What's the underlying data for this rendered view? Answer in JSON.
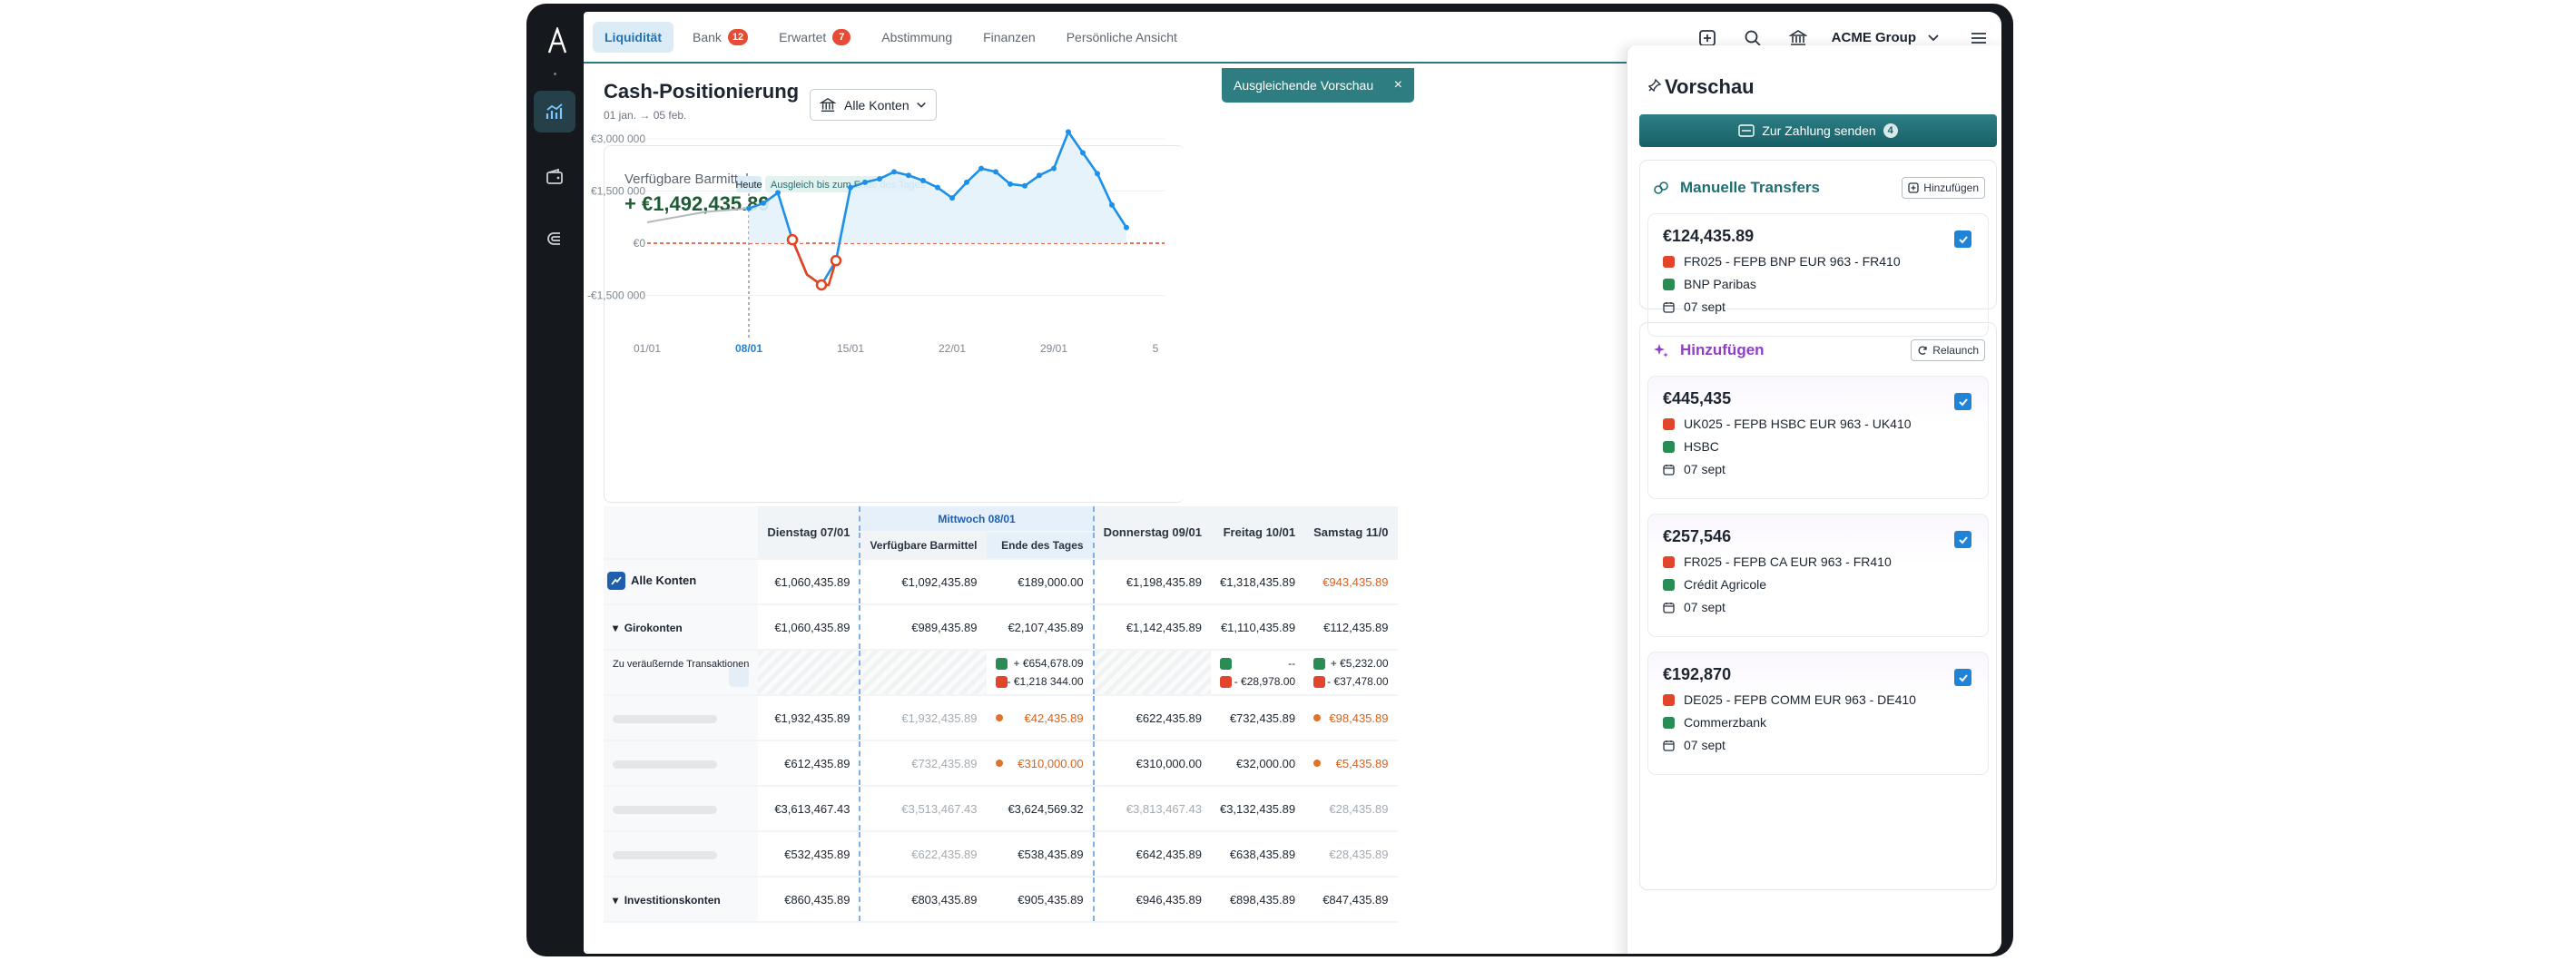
{
  "app": {
    "logo_letter": "A"
  },
  "nav": {
    "tabs": [
      {
        "label": "Liquidität",
        "active": true
      },
      {
        "label": "Bank",
        "badge": "12"
      },
      {
        "label": "Erwartet",
        "badge": "7"
      },
      {
        "label": "Abstimmung"
      },
      {
        "label": "Finanzen"
      },
      {
        "label": "Persönliche Ansicht"
      }
    ],
    "org": "ACME Group"
  },
  "toast": {
    "label": "Ausgleichende Vorschau",
    "close": "×"
  },
  "page": {
    "title": "Cash-Positionierung",
    "date_range": "01 jan. → 05 feb.",
    "account_select": "Alle Konten"
  },
  "chart_data": {
    "type": "line",
    "title": "Verfügbare Barmittel",
    "headline_value": "+ €1,492,435.89",
    "y_ticks": [
      "€3,000 000",
      "€1,500 000",
      "€0",
      "-€1,500 000"
    ],
    "ylim": [
      -1500000,
      3000000
    ],
    "x_ticks": [
      "01/01",
      "08/01",
      "15/01",
      "22/01",
      "29/01",
      "5"
    ],
    "today_label": "Heute",
    "annotation": "Ausgleich bis zum Ende des Tages",
    "colors": {
      "history": "#b5b9bd",
      "forecast": "#1e90e8",
      "negative": "#e2441f",
      "zero_line": "#e2441f",
      "fill": "#e3f2fb"
    },
    "series": [
      {
        "segment": "history",
        "x": [
          1,
          5,
          8
        ],
        "y": [
          600000,
          900000,
          1000000
        ]
      },
      {
        "segment": "forecast",
        "x": [
          8,
          9,
          10,
          11,
          12,
          13,
          14,
          15,
          16,
          17,
          18,
          19,
          20,
          21,
          22,
          23,
          24,
          25,
          26,
          27,
          28,
          29,
          30,
          31,
          32,
          33,
          34
        ],
        "y": [
          1000000,
          1150000,
          1450000,
          100000,
          -900000,
          -1200000,
          -500000,
          1600000,
          1750000,
          1850000,
          2050000,
          1950000,
          1800000,
          1600000,
          1300000,
          1750000,
          2150000,
          2050000,
          1700000,
          1650000,
          1950000,
          2150000,
          3200000,
          2600000,
          2000000,
          1100000,
          450000
        ]
      },
      {
        "segment": "negative",
        "x": [
          11,
          12,
          13,
          13.5,
          14
        ],
        "y": [
          100000,
          -900000,
          -1200000,
          -1200000,
          -500000
        ]
      }
    ]
  },
  "grid": {
    "headers": {
      "col1": "Dienstag 07/01",
      "mid": "Mittwoch 08/01",
      "mid_a": "Verfügbare Barmittel",
      "mid_b": "Ende des Tages",
      "col3": "Donnerstag 09/01",
      "col4": "Freitag 10/01",
      "col5": "Samstag 11/0"
    },
    "rows": [
      {
        "label": "Alle Konten",
        "c1": "€1,060,435.89",
        "c2": "€1,092,435.89",
        "c3": "€189,000.00",
        "c4": "€1,198,435.89",
        "c5": "€1,318,435.89",
        "c6": "€943,435.89"
      },
      {
        "label": "Girokonten",
        "c1": "€1,060,435.89",
        "c2": "€989,435.89",
        "c3": "€2,107,435.89",
        "c4": "€1,142,435.89",
        "c5": "€1,110,435.89",
        "c6": "€112,435.89"
      },
      {
        "label": "Zu veräußernde Transaktionen",
        "c3_in": "+ €654,678.09",
        "c3_out": "- €1,218 344.00",
        "c5_in": "--",
        "c5_out": "- €28,978.00",
        "c6_in": "+ €5,232.00",
        "c6_out": "- €37,478.00"
      },
      {
        "c1": "€1,932,435.89",
        "c2": "€1,932,435.89",
        "c3": "€42,435.89",
        "c4": "€622,435.89",
        "c5": "€732,435.89",
        "c6": "€98,435.89"
      },
      {
        "c1": "€612,435.89",
        "c2": "€732,435.89",
        "c3": "€310,000.00",
        "c4": "€310,000.00",
        "c5": "€32,000.00",
        "c6": "€5,435.89"
      },
      {
        "c1": "€3,613,467.43",
        "c2": "€3,513,467.43",
        "c3": "€3,624,569.32",
        "c4": "€3,813,467.43",
        "c5": "€3,132,435.89",
        "c6": "€28,435.89"
      },
      {
        "c1": "€532,435.89",
        "c2": "€622,435.89",
        "c3": "€538,435.89",
        "c4": "€642,435.89",
        "c5": "€638,435.89",
        "c6": "€28,435.89"
      },
      {
        "label": "Investitionskonten",
        "c1": "€860,435.89",
        "c2": "€803,435.89",
        "c3": "€905,435.89",
        "c4": "€946,435.89",
        "c5": "€898,435.89",
        "c6": "€847,435.89"
      }
    ]
  },
  "preview": {
    "title": "Vorschau",
    "pay_button": "Zur Zahlung senden",
    "pay_count": "4",
    "manual": {
      "title": "Manuelle Transfers",
      "button": "Hinzufügen",
      "items": [
        {
          "amount": "€124,435.89",
          "from": "FR025 - FEPB BNP EUR 963 - FR410",
          "bank": "BNP Paribas",
          "date": "07 sept"
        }
      ]
    },
    "suggest": {
      "title": "Hinzufügen",
      "button": "Relaunch",
      "items": [
        {
          "amount": "€445,435",
          "from": "UK025 - FEPB HSBC EUR 963 - UK410",
          "bank": "HSBC",
          "date": "07 sept"
        },
        {
          "amount": "€257,546",
          "from": "FR025 - FEPB CA EUR 963 - FR410",
          "bank": "Crédit Agricole",
          "date": "07 sept"
        },
        {
          "amount": "€192,870",
          "from": "DE025 - FEPB COMM EUR 963 - DE410",
          "bank": "Commerzbank",
          "date": "07 sept"
        }
      ]
    }
  }
}
